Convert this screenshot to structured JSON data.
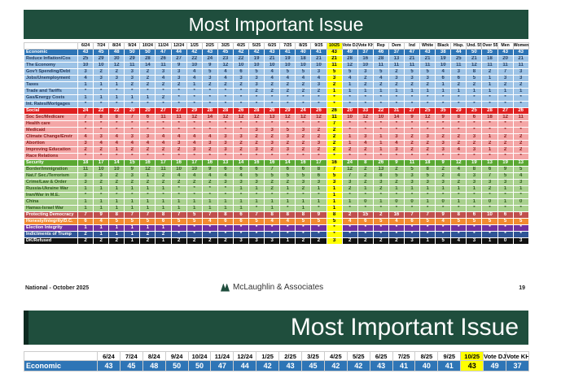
{
  "slide1": {
    "title": "Most Important Issue",
    "columns": [
      "6/24",
      "7/24",
      "8/24",
      "9/24",
      "10/24",
      "11/24",
      "12/24",
      "1/25",
      "2/25",
      "3/25",
      "4/25",
      "5/25",
      "6/25",
      "7/25",
      "8/25",
      "9/25",
      "10/25",
      "Vote DJT",
      "Vote KH",
      "Rep",
      "Dem",
      "Ind",
      "White",
      "Black",
      "Hisp.",
      "Und. 55",
      "Over 55",
      "Men",
      "Women"
    ],
    "highlight_col": 16,
    "rows": [
      {
        "label": "Economic",
        "cls": "cat-econ",
        "vals": [
          "43",
          "45",
          "48",
          "50",
          "50",
          "47",
          "44",
          "42",
          "43",
          "45",
          "42",
          "42",
          "43",
          "41",
          "40",
          "41",
          "43",
          "49",
          "37",
          "46",
          "37",
          "47",
          "43",
          "38",
          "44",
          "50",
          "35",
          "43",
          "43"
        ]
      },
      {
        "label": "Reduce Inflation/Cos",
        "cls": "sub-econ",
        "vals": [
          "25",
          "29",
          "30",
          "29",
          "28",
          "26",
          "27",
          "22",
          "24",
          "23",
          "22",
          "19",
          "21",
          "19",
          "18",
          "21",
          "21",
          "28",
          "16",
          "28",
          "13",
          "21",
          "21",
          "19",
          "25",
          "21",
          "18",
          "20",
          "21"
        ]
      },
      {
        "label": "The Economy",
        "cls": "sub-econ",
        "vals": [
          "10",
          "10",
          "12",
          "11",
          "14",
          "11",
          "9",
          "10",
          "9",
          "12",
          "10",
          "10",
          "10",
          "10",
          "10",
          "10",
          "11",
          "12",
          "10",
          "11",
          "11",
          "11",
          "11",
          "10",
          "11",
          "12",
          "11",
          "11",
          "11"
        ]
      },
      {
        "label": "Gov't Spending/Debt",
        "cls": "sub-econ",
        "vals": [
          "3",
          "2",
          "2",
          "3",
          "2",
          "3",
          "3",
          "4",
          "5",
          "4",
          "6",
          "5",
          "4",
          "5",
          "5",
          "3",
          "5",
          "5",
          "3",
          "5",
          "2",
          "5",
          "5",
          "4",
          "3",
          "8",
          "2",
          "7",
          "3"
        ]
      },
      {
        "label": "Jobs/Unemployment",
        "cls": "sub-econ",
        "vals": [
          "4",
          "3",
          "3",
          "3",
          "2",
          "4",
          "3",
          "4",
          "3",
          "4",
          "3",
          "3",
          "4",
          "4",
          "4",
          "4",
          "3",
          "4",
          "2",
          "4",
          "3",
          "3",
          "3",
          "6",
          "6",
          "5",
          "1",
          "3",
          "3"
        ]
      },
      {
        "label": "Taxes",
        "cls": "sub-econ",
        "vals": [
          "1",
          "1",
          "1",
          "2",
          "2",
          "2",
          "2",
          "1",
          "2",
          "2",
          "2",
          "3",
          "2",
          "2",
          "2",
          "3",
          "2",
          "1",
          "2",
          "2",
          "2",
          "2",
          "2",
          "1",
          "2",
          "2",
          "1",
          "2",
          "2"
        ]
      },
      {
        "label": "Trade and Tariffs",
        "cls": "sub-econ",
        "vals": [
          "*",
          "*",
          "*",
          "*",
          "*",
          "*",
          "*",
          "*",
          "*",
          "*",
          "*",
          "2",
          "2",
          "2",
          "2",
          "2",
          "1",
          "1",
          "1",
          "1",
          "1",
          "1",
          "1",
          "1",
          "1",
          "1",
          "1",
          "1",
          "1"
        ]
      },
      {
        "label": "Gas/Energy Costs",
        "cls": "sub-econ",
        "vals": [
          "1",
          "1",
          "1",
          "1",
          "1",
          "2",
          "*",
          "*",
          "*",
          "*",
          "*",
          "*",
          "*",
          "*",
          "*",
          "*",
          "*",
          "*",
          "*",
          "*",
          "*",
          "*",
          "*",
          "*",
          "*",
          "*",
          "*",
          "*",
          "*"
        ]
      },
      {
        "label": "Int. Rates/Mortgages",
        "cls": "sub-econ",
        "vals": [
          "*",
          "*",
          "*",
          "*",
          "*",
          "*",
          "*",
          "*",
          "*",
          "*",
          "*",
          "*",
          "*",
          "*",
          "*",
          "*",
          "*",
          "*",
          "*",
          "*",
          "*",
          "*",
          "*",
          "*",
          "*",
          "*",
          "*",
          "*",
          "*"
        ]
      },
      {
        "label": "Social",
        "cls": "cat-soc",
        "vals": [
          "24",
          "22",
          "22",
          "20",
          "20",
          "27",
          "27",
          "29",
          "28",
          "28",
          "26",
          "28",
          "26",
          "29",
          "24",
          "26",
          "26",
          "20",
          "33",
          "22",
          "31",
          "27",
          "25",
          "35",
          "29",
          "25",
          "28",
          "27",
          "26"
        ]
      },
      {
        "label": "Soc Sec/Medicare",
        "cls": "sub-soc",
        "vals": [
          "7",
          "8",
          "8",
          "7",
          "6",
          "11",
          "11",
          "12",
          "14",
          "12",
          "12",
          "12",
          "13",
          "12",
          "12",
          "12",
          "11",
          "10",
          "12",
          "10",
          "14",
          "9",
          "12",
          "9",
          "8",
          "6",
          "18",
          "12",
          "11"
        ]
      },
      {
        "label": "Health care",
        "cls": "sub-soc",
        "vals": [
          "*",
          "*",
          "*",
          "*",
          "*",
          "*",
          "*",
          "*",
          "*",
          "*",
          "*",
          "*",
          "*",
          "*",
          "*",
          "*",
          "7",
          "*",
          "*",
          "*",
          "*",
          "*",
          "*",
          "*",
          "*",
          "*",
          "*",
          "*",
          "*"
        ]
      },
      {
        "label": "Medicaid",
        "cls": "sub-soc",
        "vals": [
          "*",
          "*",
          "*",
          "*",
          "*",
          "*",
          "*",
          "*",
          "*",
          "*",
          "*",
          "3",
          "3",
          "5",
          "3",
          "2",
          "2",
          "*",
          "*",
          "*",
          "*",
          "*",
          "*",
          "*",
          "*",
          "*",
          "*",
          "*",
          "*"
        ]
      },
      {
        "label": "Climate Change/Envir",
        "cls": "sub-soc",
        "vals": [
          "4",
          "3",
          "4",
          "3",
          "3",
          "4",
          "4",
          "4",
          "4",
          "3",
          "3",
          "2",
          "2",
          "3",
          "2",
          "2",
          "2",
          "1",
          "3",
          "1",
          "3",
          "2",
          "3",
          "2",
          "2",
          "3",
          "1",
          "2",
          "2"
        ]
      },
      {
        "label": "Abortion",
        "cls": "sub-soc",
        "vals": [
          "3",
          "4",
          "4",
          "4",
          "4",
          "4",
          "3",
          "4",
          "3",
          "3",
          "2",
          "2",
          "3",
          "2",
          "2",
          "3",
          "2",
          "1",
          "4",
          "1",
          "4",
          "2",
          "2",
          "3",
          "2",
          "2",
          "2",
          "2",
          "2"
        ]
      },
      {
        "label": "Improving Education",
        "cls": "sub-soc",
        "vals": [
          "2",
          "2",
          "1",
          "2",
          "2",
          "2",
          "2",
          "3",
          "2",
          "3",
          "2",
          "3",
          "2",
          "3",
          "2",
          "2",
          "2",
          "2",
          "2",
          "1",
          "3",
          "2",
          "2",
          "3",
          "4",
          "3",
          "1",
          "2",
          "2"
        ]
      },
      {
        "label": "Race Relations",
        "cls": "sub-soc",
        "vals": [
          "*",
          "*",
          "*",
          "*",
          "*",
          "*",
          "*",
          "*",
          "*",
          "*",
          "*",
          "*",
          "*",
          "*",
          "*",
          "*",
          "*",
          "*",
          "*",
          "*",
          "*",
          "*",
          "*",
          "*",
          "*",
          "*",
          "*",
          "*",
          "*"
        ]
      },
      {
        "label": "Security",
        "cls": "cat-sec",
        "vals": [
          "18",
          "17",
          "14",
          "15",
          "16",
          "17",
          "16",
          "17",
          "16",
          "13",
          "14",
          "16",
          "16",
          "14",
          "16",
          "17",
          "16",
          "24",
          "8",
          "26",
          "9",
          "11",
          "18",
          "9",
          "12",
          "19",
          "13",
          "19",
          "13"
        ]
      },
      {
        "label": "Border/Immigration",
        "cls": "sub-sec",
        "vals": [
          "11",
          "10",
          "10",
          "9",
          "12",
          "11",
          "10",
          "10",
          "9",
          "6",
          "6",
          "6",
          "7",
          "6",
          "6",
          "8",
          "7",
          "12",
          "2",
          "13",
          "2",
          "5",
          "8",
          "2",
          "4",
          "8",
          "6",
          "9",
          "5"
        ]
      },
      {
        "label": "Nat.I' Sec./Terrorism",
        "cls": "sub-sec",
        "vals": [
          "3",
          "3",
          "2",
          "3",
          "1",
          "2",
          "4",
          "4",
          "4",
          "4",
          "4",
          "5",
          "5",
          "5",
          "5",
          "6",
          "5",
          "7",
          "2",
          "8",
          "5",
          "3",
          "5",
          "2",
          "4",
          "3",
          "7",
          "5",
          "4"
        ]
      },
      {
        "label": "Crime/Law & Order",
        "cls": "sub-sec",
        "vals": [
          "3",
          "2",
          "2",
          "2",
          "2",
          "2",
          "2",
          "2",
          "2",
          "3",
          "3",
          "3",
          "2",
          "2",
          "3",
          "3",
          "3",
          "3",
          "2",
          "3",
          "2",
          "3",
          "3",
          "3",
          "2",
          "3",
          "3",
          "3",
          "3"
        ]
      },
      {
        "label": "Russia-Ukraine War",
        "cls": "sub-sec",
        "vals": [
          "1",
          "1",
          "1",
          "1",
          "1",
          "1",
          "*",
          "*",
          "*",
          "*",
          "1",
          "1",
          "2",
          "1",
          "2",
          "1",
          "1",
          "2",
          "1",
          "2",
          "1",
          "1",
          "1",
          "1",
          "1",
          "1",
          "2",
          "1",
          "1"
        ]
      },
      {
        "label": "Iran/War in M.E.",
        "cls": "sub-sec",
        "vals": [
          "*",
          "*",
          "*",
          "*",
          "*",
          "*",
          "*",
          "*",
          "*",
          "*",
          "*",
          "*",
          "*",
          "*",
          "*",
          "*",
          "1",
          "*",
          "*",
          "*",
          "*",
          "*",
          "*",
          "*",
          "*",
          "*",
          "*",
          "*",
          "*"
        ]
      },
      {
        "label": "China",
        "cls": "sub-sec",
        "vals": [
          "1",
          "1",
          "1",
          "1",
          "1",
          "1",
          "1",
          "1",
          "1",
          "1",
          "1",
          "1",
          "1",
          "1",
          "1",
          "1",
          "1",
          "1",
          "0",
          "1",
          "0",
          "0",
          "1",
          "0",
          "1",
          "1",
          "0",
          "1",
          "0"
        ]
      },
      {
        "label": "Hamas-Israel War",
        "cls": "sub-sec",
        "vals": [
          "1",
          "1",
          "1",
          "1",
          "1",
          "1",
          "1",
          "1",
          "1",
          "1",
          "1",
          "*",
          "1",
          "*",
          "1",
          "*",
          "1",
          "*",
          "*",
          "*",
          "*",
          "*",
          "*",
          "*",
          "*",
          "*",
          "*",
          "*",
          "*"
        ]
      },
      {
        "label": "Protecting Democracy",
        "cls": "r-prot",
        "vals": [
          "7",
          "9",
          "8",
          "7",
          "7",
          "8",
          "7",
          "5",
          "7",
          "8",
          "6",
          "7",
          "8",
          "8",
          "8",
          "9",
          "8",
          "2",
          "15",
          "2",
          "16",
          "7",
          "7",
          "9",
          "8",
          "6",
          "10",
          "6",
          "9"
        ]
      },
      {
        "label": "Honesty/Integrity/D.C.",
        "cls": "r-immi",
        "vals": [
          "6",
          "4",
          "5",
          "5",
          "5",
          "6",
          "5",
          "5",
          "4",
          "6",
          "6",
          "5",
          "4",
          "4",
          "5",
          "5",
          "5",
          "4",
          "6",
          "5",
          "4",
          "6",
          "5",
          "4",
          "5",
          "5",
          "5",
          "5",
          "5"
        ]
      },
      {
        "label": "Election Integrity",
        "cls": "r-elec",
        "vals": [
          "1",
          "1",
          "1",
          "1",
          "1",
          "1",
          "*",
          "*",
          "*",
          "*",
          "*",
          "*",
          "*",
          "*",
          "*",
          "*",
          "*",
          "*",
          "*",
          "*",
          "*",
          "*",
          "*",
          "*",
          "*",
          "*",
          "*",
          "*",
          "*"
        ]
      },
      {
        "label": "Indictments of Trump",
        "cls": "r-indi",
        "vals": [
          "2",
          "1",
          "1",
          "1",
          "2",
          "2",
          "*",
          "*",
          "*",
          "*",
          "*",
          "*",
          "*",
          "*",
          "*",
          "*",
          "*",
          "*",
          "*",
          "*",
          "*",
          "*",
          "*",
          "*",
          "*",
          "*",
          "*",
          "*",
          "*"
        ]
      },
      {
        "label": "DK/Refused",
        "cls": "r-dk",
        "vals": [
          "2",
          "2",
          "2",
          "1",
          "2",
          "1",
          "2",
          "2",
          "2",
          "2",
          "3",
          "3",
          "3",
          "1",
          "2",
          "2",
          "3",
          "2",
          "2",
          "2",
          "2",
          "3",
          "1",
          "5",
          "4",
          "3",
          "1",
          "0",
          "3"
        ]
      }
    ],
    "footer_left": "National - October 2025",
    "brand": "McLaughlin & Associates",
    "page": "19"
  },
  "slide2": {
    "title": "Most Important Issue",
    "columns": [
      "6/24",
      "7/24",
      "8/24",
      "9/24",
      "10/24",
      "11/24",
      "12/24",
      "1/25",
      "2/25",
      "3/25",
      "4/25",
      "5/25",
      "6/25",
      "7/25",
      "8/25",
      "9/25",
      "10/25",
      "Vote DJT",
      "Vote KH"
    ],
    "highlight_col": 16,
    "row": {
      "label": "Economic",
      "vals": [
        "43",
        "45",
        "48",
        "50",
        "50",
        "47",
        "44",
        "42",
        "43",
        "45",
        "42",
        "42",
        "43",
        "41",
        "40",
        "41",
        "43",
        "49",
        "37"
      ]
    }
  }
}
